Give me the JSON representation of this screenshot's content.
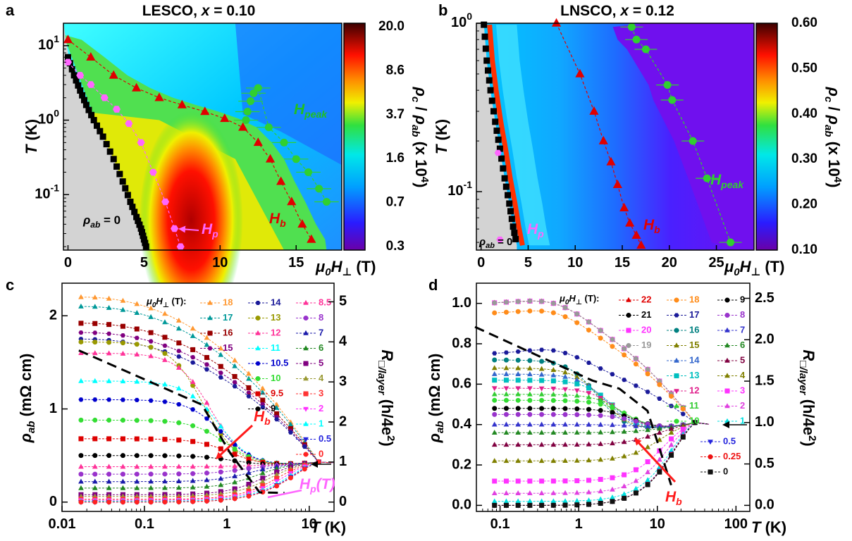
{
  "chart_data": [
    {
      "type": "heatmap",
      "panel_label": "a",
      "title": "LESCO, x = 0.10",
      "xlabel": "μ0H⊥ (T)",
      "ylabel": "T (K)",
      "xlim": [
        -0.3,
        18
      ],
      "ylim_log": [
        0.018,
        20
      ],
      "x_ticks": [
        "0",
        "5",
        "10",
        "15"
      ],
      "y_ticks": [
        "10^-1",
        "10^0",
        "10^1"
      ],
      "colorbar_label": "ρc/ρab (x 10^4)",
      "colorbar_ticks": [
        "20.0",
        "8.6",
        "3.7",
        "1.6",
        "0.7",
        "0.3"
      ],
      "annotations": [
        "ρab = 0",
        "Hp",
        "Hb",
        "Hpeak"
      ],
      "series": [
        {
          "name": "Hb",
          "x": [
            0,
            1.5,
            3,
            4.5,
            6,
            7.5,
            9,
            10.3,
            11.5,
            12.5,
            13.3,
            14,
            14.7,
            15.4,
            16
          ],
          "y": [
            12,
            7,
            4,
            2.7,
            2,
            1.6,
            1.3,
            1.05,
            0.8,
            0.5,
            0.3,
            0.15,
            0.08,
            0.04,
            0.025
          ]
        },
        {
          "name": "Hp",
          "x": [
            0,
            0.8,
            1.5,
            2.4,
            3.2,
            4,
            4.8,
            5.6,
            6.4,
            7,
            7.4
          ],
          "y": [
            6,
            4,
            3,
            2,
            1.4,
            0.9,
            0.5,
            0.2,
            0.08,
            0.035,
            0.02
          ]
        },
        {
          "name": "Hpeak",
          "x": [
            11.7,
            11.8,
            12,
            12.2,
            12.5,
            13.2,
            14.2,
            15,
            15.8,
            16.5,
            17
          ],
          "y": [
            1.0,
            1.3,
            1.8,
            2.3,
            2.7,
            0.8,
            0.5,
            0.3,
            0.2,
            0.12,
            0.08
          ]
        },
        {
          "name": "ρab = 0 boundary",
          "x": [
            0,
            0.4,
            0.8,
            1.2,
            1.7,
            2.3,
            3,
            3.6,
            4.1,
            4.5,
            4.8,
            5.0,
            5.2
          ],
          "y": [
            7,
            4,
            2.5,
            1.6,
            1,
            0.6,
            0.3,
            0.15,
            0.08,
            0.05,
            0.035,
            0.025,
            0.018
          ]
        }
      ]
    },
    {
      "type": "heatmap",
      "panel_label": "b",
      "title": "LNSCO, x = 0.12",
      "xlabel": "μ0H⊥ (T)",
      "ylabel": "T (K)",
      "xlim": [
        -0.5,
        29
      ],
      "ylim_log": [
        0.045,
        1.0
      ],
      "x_ticks": [
        "0",
        "5",
        "10",
        "15",
        "20",
        "25"
      ],
      "y_ticks": [
        "10^-1",
        "10^0"
      ],
      "colorbar_label": "ρc/ρab (x 10^4)",
      "colorbar_ticks": [
        "0.60",
        "0.50",
        "0.40",
        "0.30",
        "0.20",
        "0.10"
      ],
      "annotations": [
        "ρab = 0",
        "Hp",
        "Hb",
        "Hpeak"
      ],
      "series": [
        {
          "name": "Hb",
          "x": [
            8,
            10.5,
            12,
            13,
            13.8,
            14.5,
            15.2,
            15.8,
            16.5,
            17
          ],
          "y": [
            1.0,
            0.5,
            0.3,
            0.2,
            0.15,
            0.11,
            0.08,
            0.065,
            0.055,
            0.048
          ]
        },
        {
          "name": "Hpeak",
          "x": [
            16,
            16.5,
            17.5,
            19.8,
            20.3,
            22.5,
            24,
            26.5
          ],
          "y": [
            0.95,
            0.8,
            0.7,
            0.43,
            0.35,
            0.2,
            0.12,
            0.05
          ]
        },
        {
          "name": "ρab = 0 boundary",
          "x": [
            0.3,
            0.6,
            1.0,
            1.5,
            2.0,
            2.5,
            3.0,
            3.4,
            3.8
          ],
          "y": [
            0.98,
            0.6,
            0.4,
            0.26,
            0.18,
            0.12,
            0.085,
            0.062,
            0.048
          ]
        }
      ]
    },
    {
      "type": "line",
      "panel_label": "c",
      "xlabel": "T (K)",
      "ylabel": "ρab (mΩ cm)",
      "y2label": "R□/layer (h/4e^2)",
      "x_scale": "log",
      "xlim": [
        0.01,
        20
      ],
      "ylim": [
        -0.1,
        2.35
      ],
      "x_ticks": [
        "0.01",
        "0.1",
        "1",
        "10"
      ],
      "y_ticks": [
        "0",
        "1",
        "2"
      ],
      "y2_ticks": [
        "0",
        "1",
        "2",
        "3",
        "4",
        "5"
      ],
      "legend_title": "μ0H⊥ (T):",
      "legend": [
        "18",
        "17",
        "16",
        "15",
        "14",
        "13",
        "12",
        "11",
        "10.5",
        "10",
        "9.5",
        "9",
        "8.5",
        "8",
        "7",
        "6",
        "5",
        "4",
        "3",
        "2",
        "1",
        "0.5",
        "0"
      ],
      "annotations": [
        "Hb",
        "Hp(T)"
      ],
      "low_T_values": {
        "18": 2.2,
        "17": 2.1,
        "16": 1.92,
        "15": 1.82,
        "14": 1.75,
        "13": 1.72,
        "12": 1.6,
        "11": 1.3,
        "10.5": 1.1,
        "10": 0.88,
        "9.5": 0.68,
        "9": 0.5,
        "8.5": 0.38,
        "8": 0.3,
        "7": 0.22,
        "6": 0.15,
        "5": 0.08,
        "4": 0.06,
        "3": 0.03,
        "2": 0.02,
        "1": 0.01,
        "0.5": 0.0,
        "0": 0.0
      },
      "converge_point": {
        "T": 13,
        "rho": 0.43
      }
    },
    {
      "type": "line",
      "panel_label": "d",
      "xlabel": "T (K)",
      "ylabel": "ρab (mΩ cm)",
      "y2label": "R□/layer (h/4e^2)",
      "x_scale": "log",
      "xlim": [
        0.05,
        150
      ],
      "ylim": [
        -0.03,
        1.1
      ],
      "x_ticks": [
        "0.1",
        "1",
        "10",
        "100"
      ],
      "y_ticks": [
        "0.0",
        "0.2",
        "0.4",
        "0.6",
        "0.8",
        "1.0"
      ],
      "y2_ticks": [
        "0.0",
        "0.5",
        "1.0",
        "1.5",
        "2.0",
        "2.5"
      ],
      "legend_title": "μ0H⊥ (T):",
      "legend": [
        "22",
        "21",
        "20",
        "19",
        "18",
        "17",
        "16",
        "15",
        "14",
        "13",
        "12",
        "11",
        "10",
        "9",
        "8",
        "7",
        "6",
        "5",
        "4",
        "3",
        "2",
        "1",
        "0.5",
        "0.25",
        "0"
      ],
      "annotations": [
        "Hb"
      ],
      "low_T_values": {
        "22": 1.0,
        "21": 1.0,
        "20": 1.0,
        "19": 1.0,
        "18": 0.95,
        "17": 0.75,
        "16": 0.72,
        "15": 0.68,
        "14": 0.65,
        "13": 0.62,
        "12": 0.58,
        "11": 0.55,
        "10": 0.52,
        "9": 0.48,
        "8": 0.45,
        "7": 0.4,
        "6": 0.36,
        "5": 0.3,
        "4": 0.22,
        "3": 0.12,
        "2": 0.06,
        "1": 0.02,
        "0.5": 0.0,
        "0.25": 0.0,
        "0": 0.0
      },
      "converge_point": {
        "T": 30,
        "rho": 0.41
      }
    }
  ]
}
